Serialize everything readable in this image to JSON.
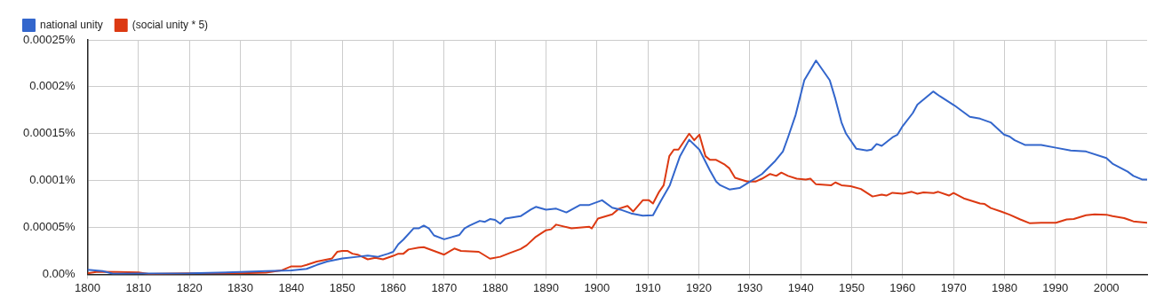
{
  "chart_data": {
    "type": "line",
    "xlim": [
      1800,
      2008
    ],
    "xticks": [
      1800,
      1810,
      1820,
      1830,
      1840,
      1850,
      1860,
      1870,
      1880,
      1890,
      1900,
      1910,
      1920,
      1930,
      1940,
      1950,
      1960,
      1970,
      1980,
      1990,
      2000
    ],
    "ylim": [
      0,
      0.00025
    ],
    "yticks": [
      {
        "value": 0,
        "label": "0.00%"
      },
      {
        "value": 5e-05,
        "label": "0.00005%"
      },
      {
        "value": 0.0001,
        "label": "0.0001%"
      },
      {
        "value": 0.00015,
        "label": "0.00015%"
      },
      {
        "value": 0.0002,
        "label": "0.0002%"
      },
      {
        "value": 0.00025,
        "label": "0.00025%"
      }
    ],
    "grid": true,
    "legend": "top left",
    "marker": "none",
    "line_style": "solid",
    "series": [
      {
        "name": "national unity",
        "color": "#3366cc",
        "x": [
          1800,
          1803,
          1805,
          1810,
          1820,
          1830,
          1835,
          1840,
          1843,
          1845,
          1847,
          1850,
          1853,
          1855,
          1857,
          1859,
          1860,
          1861,
          1862,
          1864,
          1865,
          1866,
          1867,
          1868,
          1870,
          1873,
          1874,
          1875,
          1877,
          1878,
          1879,
          1880,
          1881,
          1882,
          1885,
          1887,
          1888,
          1890,
          1892,
          1894,
          1896.7,
          1898.5,
          1901,
          1903,
          1904.6,
          1906.7,
          1909,
          1911,
          1912.5,
          1914.3,
          1916.3,
          1918.1,
          1920.1,
          1922.2,
          1923.4,
          1924.2,
          1926,
          1928,
          1930.1,
          1932.4,
          1935,
          1936.5,
          1937.5,
          1939,
          1940.7,
          1943,
          1945.7,
          1946.8,
          1948,
          1948.9,
          1950.9,
          1953,
          1953.9,
          1954.9,
          1955.9,
          1958,
          1959,
          1960,
          1962,
          1962.9,
          1966,
          1967.3,
          1970.2,
          1973.2,
          1975.2,
          1977.3,
          1979.9,
          1981,
          1982,
          1984,
          1987.2,
          1990.1,
          1993,
          1996,
          2000,
          2001.2,
          2004.2,
          2005.3,
          2007.1,
          2008
        ],
        "values": [
          4.8e-06,
          3.4e-06,
          7e-07,
          8e-07,
          1e-06,
          2.4e-06,
          3.4e-06,
          4.1e-06,
          5.8e-06,
          1e-05,
          1.36e-05,
          1.7e-05,
          1.87e-05,
          2e-05,
          1.87e-05,
          2.2e-05,
          2.4e-05,
          3.2e-05,
          3.7e-05,
          4.9e-05,
          4.9e-05,
          5.2e-05,
          4.9e-05,
          4.15e-05,
          3.74e-05,
          4.2e-05,
          4.9e-05,
          5.2e-05,
          5.7e-05,
          5.6e-05,
          5.9e-05,
          5.8e-05,
          5.4e-05,
          5.95e-05,
          6.2e-05,
          6.9e-05,
          7.2e-05,
          6.9e-05,
          7e-05,
          6.6e-05,
          7.4e-05,
          7.4e-05,
          7.9e-05,
          7.1e-05,
          6.9e-05,
          6.5e-05,
          6.26e-05,
          6.3e-05,
          7.8e-05,
          9.5e-05,
          0.000126,
          0.0001435,
          0.000133,
          0.0001105,
          9.9e-05,
          9.5e-05,
          9.05e-05,
          9.2e-05,
          9.9e-05,
          0.000107,
          0.000121,
          0.000131,
          0.000146,
          0.00017,
          0.000207,
          0.000228,
          0.000207,
          0.000187,
          0.000162,
          0.00015,
          0.000134,
          0.000132,
          0.000133,
          0.000139,
          0.000137,
          0.000146,
          0.000149,
          0.000158,
          0.000172,
          0.000181,
          0.000195,
          0.00019,
          0.00018,
          0.000168,
          0.000166,
          0.000162,
          0.000149,
          0.000147,
          0.000143,
          0.000138,
          0.000138,
          0.000135,
          0.000132,
          0.000131,
          0.000124,
          0.000118,
          0.0001095,
          0.000105,
          0.000101,
          0.000101
        ]
      },
      {
        "name": "(social unity * 5)",
        "color": "#dc3912",
        "x": [
          1800,
          1802,
          1806,
          1810,
          1812,
          1820,
          1830,
          1835,
          1838,
          1840,
          1842,
          1843,
          1845,
          1848,
          1849,
          1850,
          1851,
          1852,
          1853,
          1855,
          1856.5,
          1858,
          1860,
          1861,
          1862,
          1863,
          1865,
          1866,
          1868,
          1870,
          1872,
          1873.3,
          1876.8,
          1879,
          1881,
          1883,
          1885,
          1886.2,
          1888,
          1890,
          1891,
          1892,
          1895,
          1898.5,
          1899,
          1900.2,
          1903,
          1904.3,
          1906,
          1907.1,
          1909,
          1910.2,
          1911,
          1912.2,
          1913.1,
          1914.2,
          1915.1,
          1916,
          1918.1,
          1919.1,
          1920.1,
          1921.3,
          1922.2,
          1923.4,
          1925.1,
          1926,
          1927.1,
          1929.5,
          1931.2,
          1932.4,
          1934,
          1935.2,
          1936.2,
          1937.5,
          1939.2,
          1941,
          1941.9,
          1943,
          1946,
          1946.8,
          1948,
          1949.8,
          1951.8,
          1954.1,
          1955.9,
          1956.8,
          1958,
          1960,
          1961.8,
          1962.9,
          1964.1,
          1966.1,
          1967,
          1969.1,
          1970,
          1972,
          1975.2,
          1976.1,
          1977.3,
          1979.3,
          1981,
          1983.1,
          1985,
          1987.2,
          1990.1,
          1992.2,
          1993.6,
          1996,
          1997.7,
          2000,
          2001.2,
          2003.5,
          2005.3,
          2008
        ],
        "values": [
          1e-06,
          2.7e-06,
          2.4e-06,
          2e-06,
          3e-07,
          1e-06,
          1e-06,
          1.7e-06,
          4.1e-06,
          8.5e-06,
          8.5e-06,
          1e-05,
          1.36e-05,
          1.7e-05,
          2.4e-05,
          2.5e-05,
          2.5e-05,
          2.2e-05,
          2.1e-05,
          1.6e-05,
          1.77e-05,
          1.6e-05,
          1.97e-05,
          2.2e-05,
          2.2e-05,
          2.65e-05,
          2.86e-05,
          2.9e-05,
          2.5e-05,
          2.1e-05,
          2.75e-05,
          2.5e-05,
          2.4e-05,
          1.67e-05,
          1.87e-05,
          2.3e-05,
          2.7e-05,
          3.1e-05,
          4e-05,
          4.7e-05,
          4.8e-05,
          5.3e-05,
          4.9e-05,
          5.07e-05,
          4.9e-05,
          5.95e-05,
          6.4e-05,
          7e-05,
          7.3e-05,
          6.7e-05,
          7.9e-05,
          7.9e-05,
          7.55e-05,
          8.8e-05,
          9.5e-05,
          0.000126,
          0.000133,
          0.000133,
          0.00015,
          0.000143,
          0.000149,
          0.000126,
          0.000122,
          0.000122,
          0.000117,
          0.000113,
          0.000103,
          9.9e-05,
          9.9e-05,
          0.000102,
          0.000107,
          0.000105,
          0.0001085,
          0.000105,
          0.000102,
          0.000101,
          0.000102,
          9.6e-05,
          9.5e-05,
          9.8e-05,
          9.5e-05,
          9.4e-05,
          9.1e-05,
          8.3e-05,
          8.5e-05,
          8.4e-05,
          8.7e-05,
          8.6e-05,
          8.8e-05,
          8.6e-05,
          8.74e-05,
          8.67e-05,
          8.8e-05,
          8.4e-05,
          8.67e-05,
          8.1e-05,
          7.55e-05,
          7.5e-05,
          7.07e-05,
          6.7e-05,
          6.36e-05,
          5.85e-05,
          5.44e-05,
          5.5e-05,
          5.5e-05,
          5.85e-05,
          5.9e-05,
          6.3e-05,
          6.4e-05,
          6.36e-05,
          6.2e-05,
          6e-05,
          5.65e-05,
          5.5e-05
        ]
      }
    ]
  }
}
